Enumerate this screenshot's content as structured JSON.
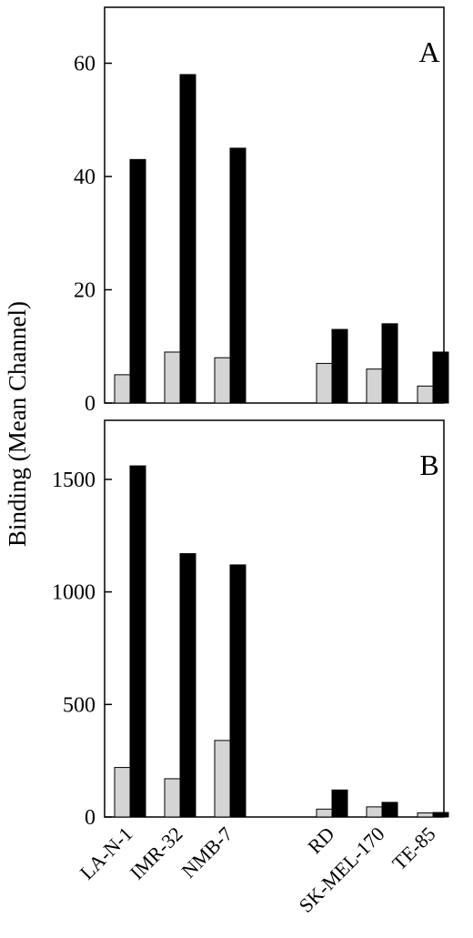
{
  "figure": {
    "ylabel": "Binding (Mean Channel)"
  },
  "chart_data": [
    {
      "type": "bar",
      "panel_label": "A",
      "categories": [
        "LA-N-1",
        "IMR-32",
        "NMB-7",
        "RD",
        "SK-MEL-170",
        "TE-85"
      ],
      "series": [
        {
          "values": [
            5,
            9,
            8,
            7,
            6,
            3
          ],
          "color": "#d4d4d4"
        },
        {
          "values": [
            43,
            58,
            45,
            13,
            14,
            9
          ],
          "color": "#000000"
        }
      ],
      "ylim": [
        0,
        60
      ],
      "yticks": [
        0,
        20,
        40,
        60
      ],
      "grid": false
    },
    {
      "type": "bar",
      "panel_label": "B",
      "categories": [
        "LA-N-1",
        "IMR-32",
        "NMB-7",
        "RD",
        "SK-MEL-170",
        "TE-85"
      ],
      "series": [
        {
          "values": [
            220,
            170,
            340,
            35,
            45,
            18
          ],
          "color": "#d4d4d4"
        },
        {
          "values": [
            1560,
            1170,
            1120,
            120,
            65,
            20
          ],
          "color": "#000000"
        }
      ],
      "ylim": [
        0,
        1500
      ],
      "yticks": [
        0,
        500,
        1000,
        1500
      ],
      "grid": false
    }
  ]
}
